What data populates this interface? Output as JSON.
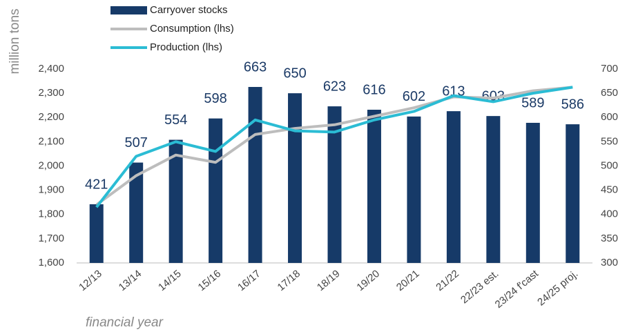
{
  "chart_data": {
    "type": "bar-line",
    "y_label": "million tons",
    "x_label": "financial year",
    "categories": [
      "12/13",
      "13/14",
      "14/15",
      "15/16",
      "16/17",
      "17/18",
      "18/19",
      "19/20",
      "20/21",
      "21/22",
      "22/23 est.",
      "23/24 f'cast",
      "24/25 proj."
    ],
    "series": [
      {
        "name": "Carryover stocks",
        "type": "bar",
        "axis": "y2",
        "color": "#163a68",
        "values": [
          421,
          507,
          554,
          598,
          663,
          650,
          623,
          616,
          602,
          613,
          603,
          589,
          586
        ]
      },
      {
        "name": "Consumption (lhs)",
        "type": "line",
        "color": "#bdbdbd",
        "values": [
          1840,
          1960,
          2045,
          2015,
          2130,
          2155,
          2170,
          2205,
          2240,
          2285,
          2280,
          2310,
          2325
        ]
      },
      {
        "name": "Production (lhs)",
        "type": "line",
        "color": "#2bbcd4",
        "values": [
          1830,
          2040,
          2100,
          2060,
          2190,
          2145,
          2140,
          2190,
          2225,
          2290,
          2265,
          2300,
          2325
        ]
      }
    ],
    "ylim": [
      1600,
      2400
    ],
    "yticks": [
      {
        "value": 1600,
        "label": "1,600"
      },
      {
        "value": 1700,
        "label": "1,700"
      },
      {
        "value": 1800,
        "label": "1,800"
      },
      {
        "value": 1900,
        "label": "1,900"
      },
      {
        "value": 2000,
        "label": "2,000"
      },
      {
        "value": 2100,
        "label": "2,100"
      },
      {
        "value": 2200,
        "label": "2,200"
      },
      {
        "value": 2300,
        "label": "2,300"
      },
      {
        "value": 2400,
        "label": "2,400"
      }
    ],
    "y2lim": [
      300,
      700
    ],
    "y2ticks": [
      300,
      350,
      400,
      450,
      500,
      550,
      600,
      650,
      700
    ]
  }
}
